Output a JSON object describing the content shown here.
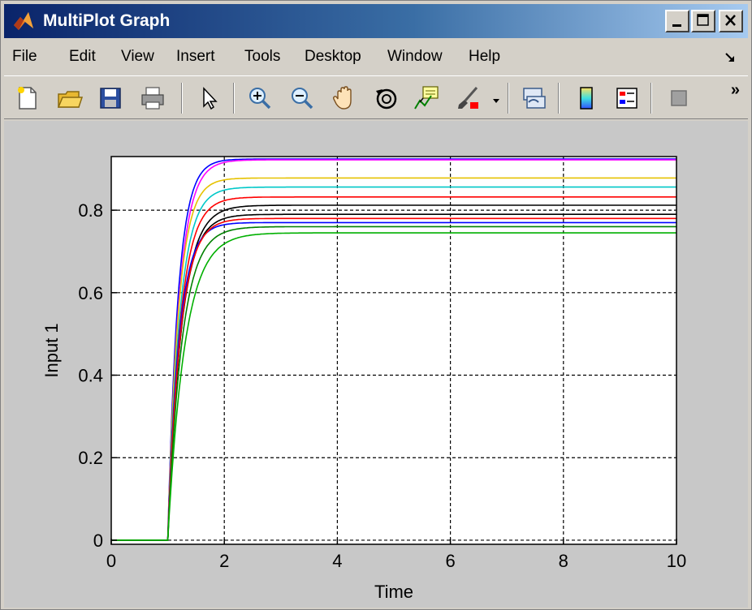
{
  "window": {
    "title": "MultiPlot Graph"
  },
  "menu": [
    "File",
    "Edit",
    "View",
    "Insert",
    "Tools",
    "Desktop",
    "Window",
    "Help"
  ],
  "toolbar": {
    "buttons": [
      "new-figure-icon",
      "open-file-icon",
      "save-figure-icon",
      "print-figure-icon",
      "edit-plot-icon",
      "zoom-in-icon",
      "zoom-out-icon",
      "pan-icon",
      "rotate-3d-icon",
      "data-cursor-icon",
      "brush-icon",
      "link-plot-icon",
      "colorbar-icon",
      "legend-icon",
      "plot-tools-icon"
    ],
    "overflow_label": "»"
  },
  "chart_data": {
    "type": "line",
    "title": "",
    "xlabel": "Time",
    "ylabel": "Input 1",
    "xlim": [
      0,
      10
    ],
    "ylim": [
      -0.01,
      0.93
    ],
    "xticks": [
      "0",
      "2",
      "4",
      "6",
      "8",
      "10"
    ],
    "yticks": [
      "0",
      "0.2",
      "0.4",
      "0.6",
      "0.8"
    ],
    "grid": true,
    "step_time": 1.0,
    "series": [
      {
        "color": "#0000ff",
        "final": 0.924,
        "tau": 0.18
      },
      {
        "color": "#ff00ff",
        "final": 0.922,
        "tau": 0.2
      },
      {
        "color": "#e6c200",
        "final": 0.878,
        "tau": 0.19
      },
      {
        "color": "#00c8c8",
        "final": 0.856,
        "tau": 0.21
      },
      {
        "color": "#ff0000",
        "final": 0.832,
        "tau": 0.22
      },
      {
        "color": "#000000",
        "final": 0.812,
        "tau": 0.24
      },
      {
        "color": "#000000",
        "final": 0.79,
        "tau": 0.23
      },
      {
        "color": "#0000ff",
        "final": 0.77,
        "tau": 0.2
      },
      {
        "color": "#ff0000",
        "final": 0.78,
        "tau": 0.22
      },
      {
        "color": "#008000",
        "final": 0.76,
        "tau": 0.25
      },
      {
        "color": "#00b000",
        "final": 0.745,
        "tau": 0.3
      }
    ]
  }
}
